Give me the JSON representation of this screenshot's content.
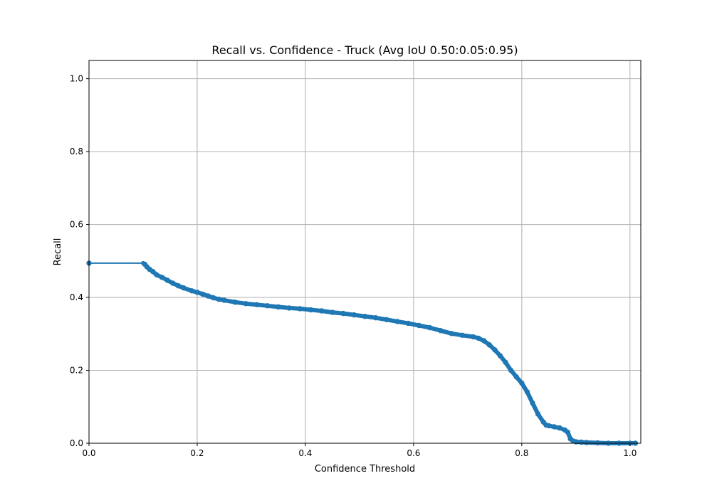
{
  "chart_data": {
    "type": "line",
    "title": "Recall vs. Confidence - Truck (Avg IoU 0.50:0.05:0.95)",
    "xlabel": "Confidence Threshold",
    "ylabel": "Recall",
    "xlim": [
      0,
      1.02
    ],
    "ylim": [
      0,
      1.05
    ],
    "xticks": [
      0.0,
      0.2,
      0.4,
      0.6,
      0.8,
      1.0
    ],
    "yticks": [
      0.0,
      0.2,
      0.4,
      0.6,
      0.8,
      1.0
    ],
    "xtick_labels": [
      "0.0",
      "0.2",
      "0.4",
      "0.6",
      "0.8",
      "1.0"
    ],
    "ytick_labels": [
      "0.0",
      "0.2",
      "0.4",
      "0.6",
      "0.8",
      "1.0"
    ],
    "grid": true,
    "color": "#1f77b4",
    "series": [
      {
        "name": "",
        "x": [
          0.0,
          0.1,
          0.103,
          0.107,
          0.112,
          0.118,
          0.125,
          0.135,
          0.145,
          0.155,
          0.165,
          0.175,
          0.19,
          0.2,
          0.21,
          0.22,
          0.23,
          0.24,
          0.25,
          0.27,
          0.29,
          0.31,
          0.33,
          0.35,
          0.37,
          0.39,
          0.41,
          0.43,
          0.45,
          0.47,
          0.49,
          0.51,
          0.53,
          0.55,
          0.57,
          0.59,
          0.61,
          0.63,
          0.65,
          0.67,
          0.69,
          0.71,
          0.72,
          0.73,
          0.74,
          0.75,
          0.76,
          0.77,
          0.78,
          0.79,
          0.8,
          0.81,
          0.82,
          0.83,
          0.84,
          0.845,
          0.85,
          0.86,
          0.87,
          0.88,
          0.885,
          0.89,
          0.895,
          0.9,
          0.91,
          0.92,
          0.94,
          0.96,
          0.98,
          1.0,
          1.01
        ],
        "y": [
          0.494,
          0.494,
          0.491,
          0.484,
          0.477,
          0.471,
          0.462,
          0.455,
          0.447,
          0.439,
          0.432,
          0.426,
          0.418,
          0.414,
          0.409,
          0.404,
          0.399,
          0.395,
          0.392,
          0.387,
          0.383,
          0.38,
          0.377,
          0.374,
          0.371,
          0.369,
          0.366,
          0.363,
          0.359,
          0.356,
          0.352,
          0.348,
          0.344,
          0.339,
          0.334,
          0.329,
          0.323,
          0.317,
          0.309,
          0.301,
          0.296,
          0.292,
          0.288,
          0.281,
          0.27,
          0.256,
          0.24,
          0.222,
          0.2,
          0.182,
          0.165,
          0.141,
          0.11,
          0.08,
          0.058,
          0.05,
          0.048,
          0.045,
          0.042,
          0.036,
          0.03,
          0.012,
          0.006,
          0.004,
          0.003,
          0.002,
          0.001,
          0.0,
          0.0,
          0.0,
          0.0
        ]
      }
    ]
  }
}
